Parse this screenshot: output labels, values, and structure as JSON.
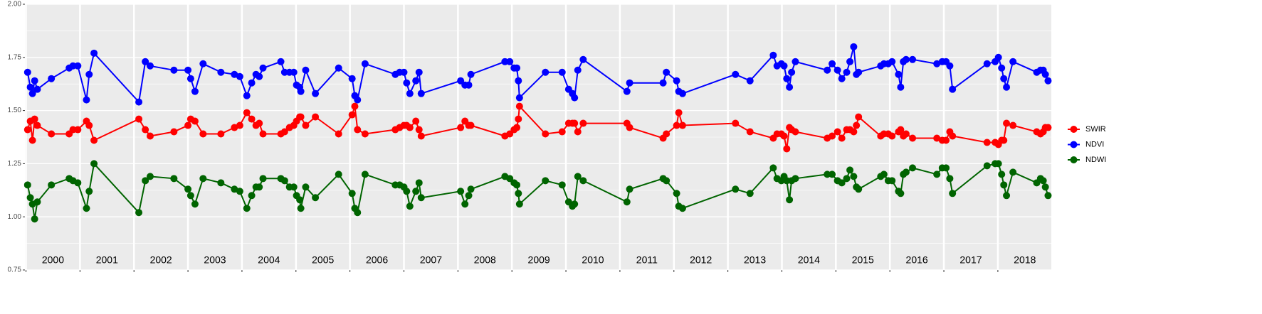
{
  "chart_data": {
    "type": "line",
    "x": [
      2000.03,
      2000.08,
      2000.12,
      2000.16,
      2000.21,
      2000.47,
      2000.8,
      2000.87,
      2000.96,
      2001.12,
      2001.17,
      2001.26,
      2002.09,
      2002.21,
      2002.3,
      2002.74,
      2003.0,
      2003.05,
      2003.13,
      2003.28,
      2003.61,
      2003.86,
      2003.96,
      2004.09,
      2004.18,
      2004.26,
      2004.32,
      2004.39,
      2004.72,
      2004.79,
      2004.88,
      2004.96,
      2005.01,
      2005.07,
      2005.09,
      2005.18,
      2005.36,
      2005.79,
      2006.04,
      2006.09,
      2006.14,
      2006.28,
      2006.84,
      2006.92,
      2007.0,
      2007.05,
      2007.11,
      2007.22,
      2007.28,
      2007.32,
      2008.05,
      2008.13,
      2008.2,
      2008.24,
      2008.87,
      2008.96,
      2009.04,
      2009.09,
      2009.12,
      2009.14,
      2009.62,
      2009.93,
      2010.05,
      2010.12,
      2010.16,
      2010.22,
      2010.32,
      2011.13,
      2011.18,
      2011.8,
      2011.86,
      2012.05,
      2012.09,
      2012.16,
      2013.14,
      2013.41,
      2013.84,
      2013.91,
      2013.99,
      2014.04,
      2014.09,
      2014.14,
      2014.18,
      2014.25,
      2014.84,
      2014.93,
      2015.03,
      2015.11,
      2015.2,
      2015.26,
      2015.33,
      2015.38,
      2015.42,
      2015.83,
      2015.89,
      2015.97,
      2016.04,
      2016.16,
      2016.2,
      2016.25,
      2016.3,
      2016.42,
      2016.87,
      2016.97,
      2017.04,
      2017.11,
      2017.16,
      2017.8,
      2017.95,
      2018.01,
      2018.07,
      2018.11,
      2018.16,
      2018.28,
      2018.72,
      2018.79,
      2018.84,
      2018.88,
      2018.93
    ],
    "series": [
      {
        "name": "SWIR",
        "color": "#ff0000",
        "values": [
          1.41,
          1.45,
          1.36,
          1.46,
          1.43,
          1.39,
          1.39,
          1.41,
          1.41,
          1.45,
          1.43,
          1.36,
          1.46,
          1.41,
          1.38,
          1.4,
          1.43,
          1.46,
          1.45,
          1.39,
          1.39,
          1.42,
          1.43,
          1.49,
          1.46,
          1.43,
          1.44,
          1.39,
          1.39,
          1.4,
          1.42,
          1.43,
          1.45,
          1.47,
          1.47,
          1.43,
          1.47,
          1.39,
          1.48,
          1.52,
          1.41,
          1.39,
          1.41,
          1.42,
          1.43,
          1.43,
          1.42,
          1.45,
          1.41,
          1.38,
          1.42,
          1.45,
          1.43,
          1.43,
          1.38,
          1.39,
          1.41,
          1.42,
          1.46,
          1.52,
          1.39,
          1.4,
          1.44,
          1.44,
          1.44,
          1.4,
          1.44,
          1.44,
          1.42,
          1.37,
          1.39,
          1.43,
          1.49,
          1.43,
          1.44,
          1.4,
          1.37,
          1.39,
          1.39,
          1.38,
          1.32,
          1.42,
          1.41,
          1.4,
          1.37,
          1.38,
          1.4,
          1.37,
          1.41,
          1.41,
          1.4,
          1.43,
          1.47,
          1.38,
          1.39,
          1.39,
          1.38,
          1.4,
          1.41,
          1.38,
          1.39,
          1.37,
          1.37,
          1.36,
          1.36,
          1.4,
          1.38,
          1.35,
          1.35,
          1.34,
          1.36,
          1.36,
          1.44,
          1.43,
          1.4,
          1.39,
          1.4,
          1.42,
          1.42
        ]
      },
      {
        "name": "NDVI",
        "color": "#0000ff",
        "values": [
          1.68,
          1.61,
          1.58,
          1.64,
          1.6,
          1.65,
          1.7,
          1.71,
          1.71,
          1.55,
          1.67,
          1.77,
          1.54,
          1.73,
          1.71,
          1.69,
          1.69,
          1.65,
          1.59,
          1.72,
          1.68,
          1.67,
          1.66,
          1.57,
          1.63,
          1.67,
          1.66,
          1.7,
          1.73,
          1.68,
          1.68,
          1.68,
          1.62,
          1.61,
          1.59,
          1.69,
          1.58,
          1.7,
          1.65,
          1.57,
          1.55,
          1.72,
          1.67,
          1.68,
          1.68,
          1.63,
          1.58,
          1.64,
          1.68,
          1.58,
          1.64,
          1.62,
          1.62,
          1.67,
          1.73,
          1.73,
          1.7,
          1.7,
          1.64,
          1.56,
          1.68,
          1.68,
          1.6,
          1.58,
          1.56,
          1.69,
          1.74,
          1.59,
          1.63,
          1.63,
          1.68,
          1.64,
          1.59,
          1.58,
          1.67,
          1.64,
          1.76,
          1.71,
          1.72,
          1.71,
          1.65,
          1.61,
          1.68,
          1.73,
          1.69,
          1.72,
          1.69,
          1.65,
          1.68,
          1.73,
          1.8,
          1.67,
          1.68,
          1.71,
          1.72,
          1.72,
          1.73,
          1.67,
          1.61,
          1.73,
          1.74,
          1.74,
          1.72,
          1.73,
          1.73,
          1.71,
          1.6,
          1.72,
          1.73,
          1.75,
          1.7,
          1.65,
          1.61,
          1.73,
          1.68,
          1.69,
          1.69,
          1.67,
          1.64
        ]
      },
      {
        "name": "NDWI",
        "color": "#006400",
        "values": [
          1.15,
          1.09,
          1.06,
          0.99,
          1.07,
          1.15,
          1.18,
          1.17,
          1.16,
          1.04,
          1.12,
          1.25,
          1.02,
          1.17,
          1.19,
          1.18,
          1.13,
          1.1,
          1.06,
          1.18,
          1.16,
          1.13,
          1.12,
          1.04,
          1.1,
          1.14,
          1.14,
          1.18,
          1.18,
          1.17,
          1.14,
          1.14,
          1.1,
          1.08,
          1.04,
          1.14,
          1.09,
          1.2,
          1.11,
          1.04,
          1.02,
          1.2,
          1.15,
          1.15,
          1.14,
          1.12,
          1.05,
          1.12,
          1.16,
          1.09,
          1.12,
          1.06,
          1.1,
          1.13,
          1.19,
          1.18,
          1.16,
          1.15,
          1.11,
          1.06,
          1.17,
          1.15,
          1.07,
          1.05,
          1.06,
          1.19,
          1.17,
          1.07,
          1.13,
          1.18,
          1.17,
          1.11,
          1.05,
          1.04,
          1.13,
          1.11,
          1.23,
          1.18,
          1.17,
          1.19,
          1.17,
          1.08,
          1.17,
          1.18,
          1.2,
          1.2,
          1.17,
          1.16,
          1.18,
          1.22,
          1.19,
          1.14,
          1.13,
          1.19,
          1.2,
          1.17,
          1.17,
          1.12,
          1.11,
          1.2,
          1.21,
          1.23,
          1.2,
          1.23,
          1.23,
          1.18,
          1.11,
          1.24,
          1.25,
          1.25,
          1.2,
          1.15,
          1.1,
          1.21,
          1.16,
          1.18,
          1.17,
          1.14,
          1.1
        ]
      }
    ],
    "xlim": [
      1999.98,
      2018.99
    ],
    "xticks": [
      {
        "value": 2000,
        "label": "2000"
      },
      {
        "value": 2001,
        "label": "2001"
      },
      {
        "value": 2002,
        "label": "2002"
      },
      {
        "value": 2003,
        "label": "2003"
      },
      {
        "value": 2004,
        "label": "2004"
      },
      {
        "value": 2005,
        "label": "2005"
      },
      {
        "value": 2006,
        "label": "2006"
      },
      {
        "value": 2007,
        "label": "2007"
      },
      {
        "value": 2008,
        "label": "2008"
      },
      {
        "value": 2009,
        "label": "2009"
      },
      {
        "value": 2010,
        "label": "2010"
      },
      {
        "value": 2011,
        "label": "2011"
      },
      {
        "value": 2012,
        "label": "2012"
      },
      {
        "value": 2013,
        "label": "2013"
      },
      {
        "value": 2014,
        "label": "2014"
      },
      {
        "value": 2015,
        "label": "2015"
      },
      {
        "value": 2016,
        "label": "2016"
      },
      {
        "value": 2017,
        "label": "2017"
      },
      {
        "value": 2018,
        "label": "2018"
      }
    ],
    "ylim": [
      0.75,
      2.0
    ],
    "yticks": [
      0.75,
      {
        "value": 1.0,
        "label": "1.00"
      },
      1.25,
      {
        "value": 1.5,
        "label": "1.50"
      },
      1.75,
      {
        "value": 2.0,
        "label": "2.00"
      }
    ],
    "grid": true,
    "legend": "right"
  }
}
